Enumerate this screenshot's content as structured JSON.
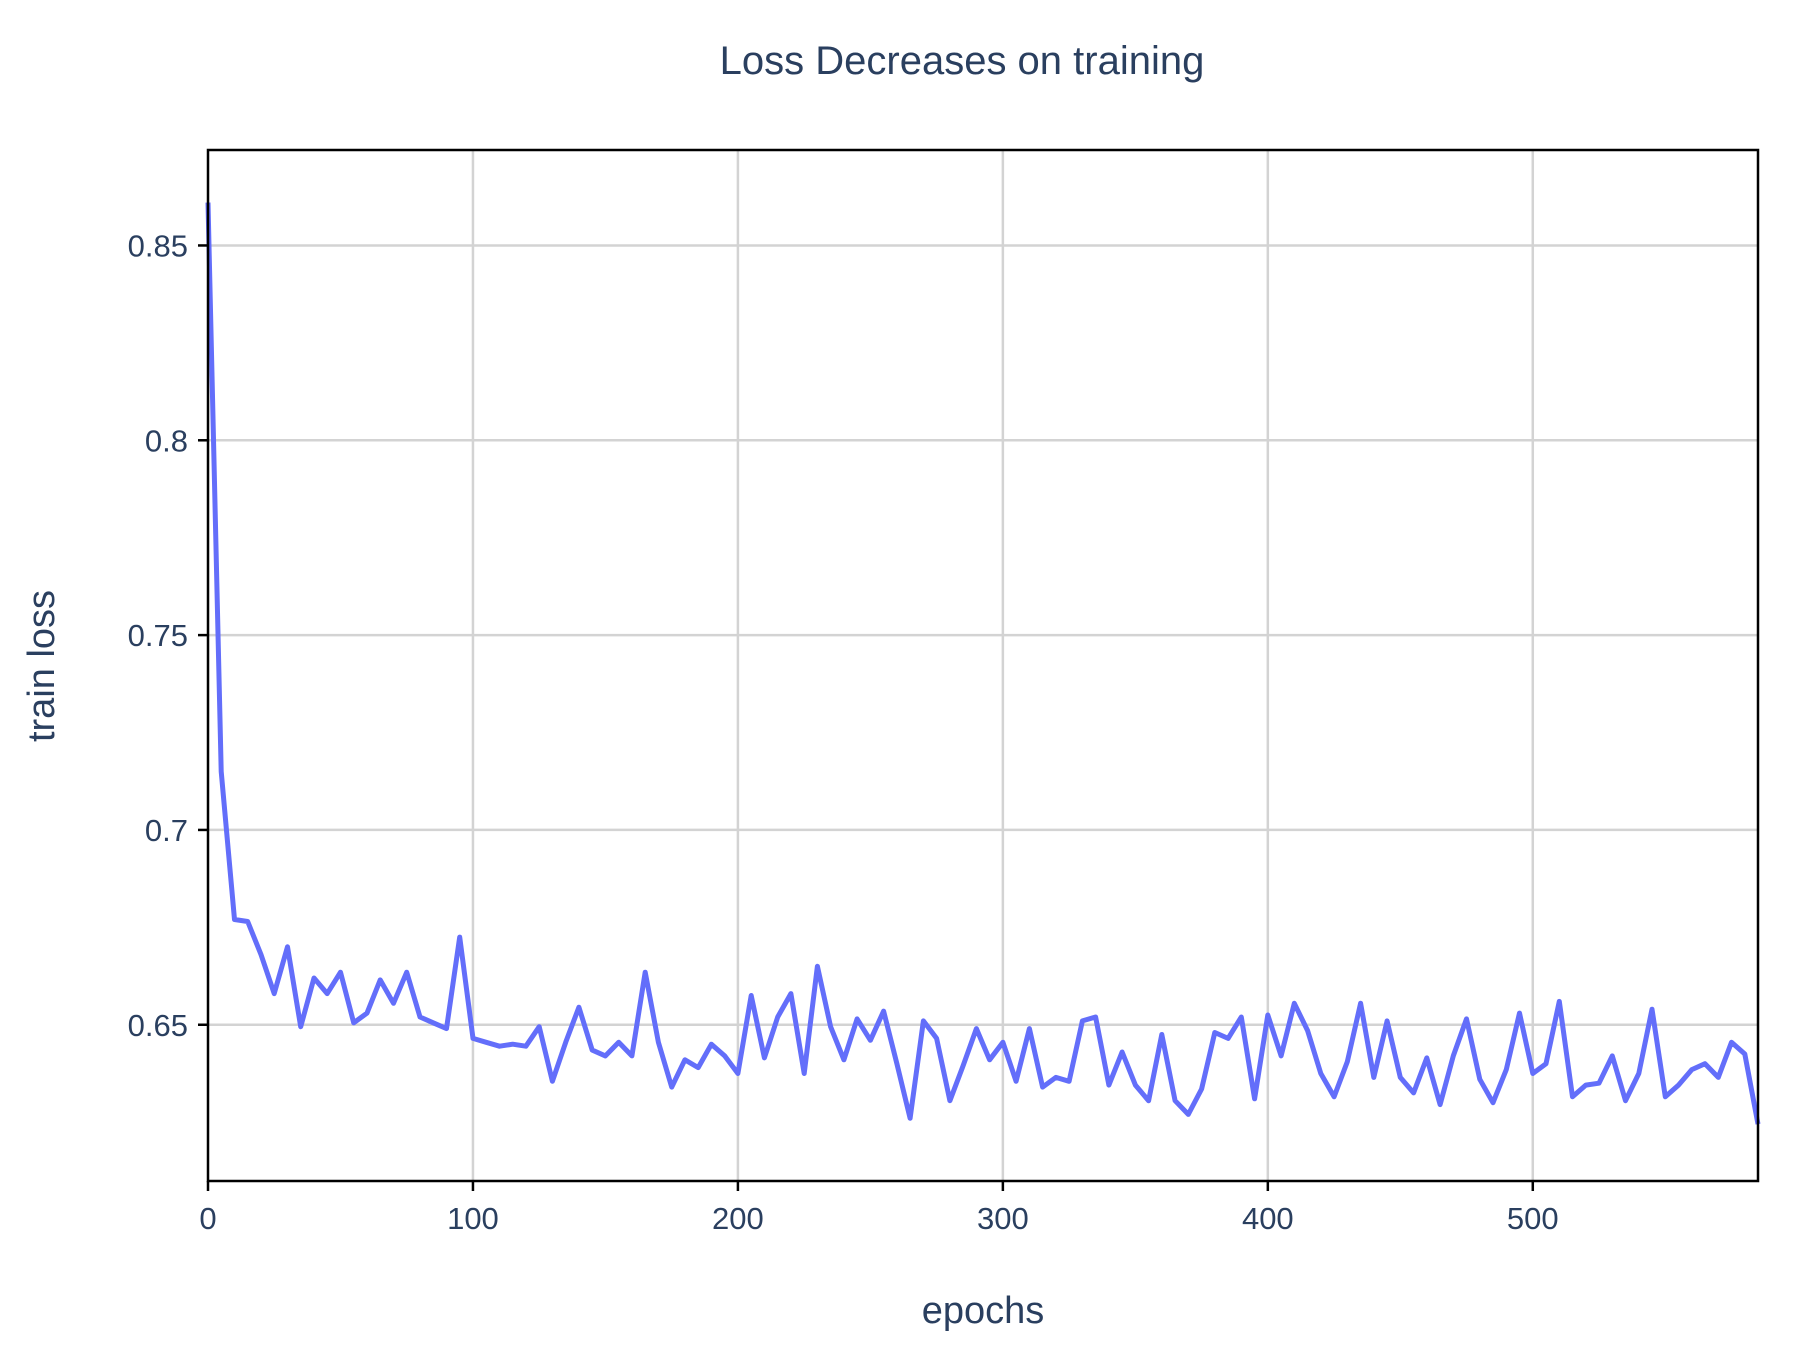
{
  "chart_data": {
    "type": "line",
    "title": "Loss Decreases on training",
    "xlabel": "epochs",
    "ylabel": "train loss",
    "xlim": [
      0,
      585
    ],
    "ylim": [
      0.6099,
      0.8745
    ],
    "xticks": [
      0,
      100,
      200,
      300,
      400,
      500
    ],
    "xtick_labels": [
      "0",
      "100",
      "200",
      "300",
      "400",
      "500"
    ],
    "yticks": [
      0.65,
      0.7,
      0.75,
      0.8,
      0.85
    ],
    "ytick_labels": [
      "0.65",
      "0.7",
      "0.75",
      "0.8",
      "0.85"
    ],
    "grid": true,
    "color": "#636efa",
    "series": [
      {
        "x": [
          0,
          5,
          10,
          15,
          20,
          25,
          30,
          35,
          40,
          45,
          50,
          55,
          60,
          65,
          70,
          75,
          80,
          85,
          90,
          95,
          100,
          105,
          110,
          115,
          120,
          125,
          130,
          135,
          140,
          145,
          150,
          155,
          160,
          165,
          170,
          175,
          180,
          185,
          190,
          195,
          200,
          205,
          210,
          215,
          220,
          225,
          230,
          235,
          240,
          245,
          250,
          255,
          260,
          265,
          270,
          275,
          280,
          285,
          290,
          295,
          300,
          305,
          310,
          315,
          320,
          325,
          330,
          335,
          340,
          345,
          350,
          355,
          360,
          365,
          370,
          375,
          380,
          385,
          390,
          395,
          400,
          405,
          410,
          415,
          420,
          425,
          430,
          435,
          440,
          445,
          450,
          455,
          460,
          465,
          470,
          475,
          480,
          485,
          490,
          495,
          500,
          505,
          510,
          515,
          520,
          525,
          530,
          535,
          540,
          545,
          550,
          555,
          560,
          565,
          570,
          575,
          580,
          585
        ],
        "y": [
          0.861,
          0.715,
          0.677,
          0.6765,
          0.668,
          0.658,
          0.67,
          0.6495,
          0.662,
          0.658,
          0.6635,
          0.6505,
          0.653,
          0.6615,
          0.6555,
          0.6635,
          0.652,
          0.6505,
          0.649,
          0.6725,
          0.6465,
          0.6455,
          0.6445,
          0.645,
          0.6445,
          0.6495,
          0.6355,
          0.6455,
          0.6545,
          0.6435,
          0.642,
          0.6455,
          0.642,
          0.6635,
          0.6455,
          0.634,
          0.641,
          0.639,
          0.645,
          0.642,
          0.6375,
          0.6575,
          0.6415,
          0.652,
          0.658,
          0.6375,
          0.665,
          0.6495,
          0.641,
          0.6515,
          0.646,
          0.6535,
          0.64,
          0.626,
          0.651,
          0.6465,
          0.6305,
          0.6395,
          0.649,
          0.641,
          0.6455,
          0.6355,
          0.649,
          0.634,
          0.6365,
          0.6355,
          0.651,
          0.652,
          0.6345,
          0.643,
          0.6345,
          0.6305,
          0.6475,
          0.6305,
          0.627,
          0.6335,
          0.648,
          0.6465,
          0.652,
          0.631,
          0.6525,
          0.642,
          0.6555,
          0.6485,
          0.6375,
          0.6315,
          0.6405,
          0.6555,
          0.6365,
          0.651,
          0.6365,
          0.6325,
          0.6415,
          0.6295,
          0.642,
          0.6515,
          0.636,
          0.63,
          0.6385,
          0.653,
          0.6375,
          0.64,
          0.656,
          0.6315,
          0.6345,
          0.635,
          0.642,
          0.6305,
          0.6375,
          0.654,
          0.6315,
          0.6345,
          0.6385,
          0.64,
          0.6365,
          0.6455,
          0.6425,
          0.6245
        ]
      }
    ]
  }
}
